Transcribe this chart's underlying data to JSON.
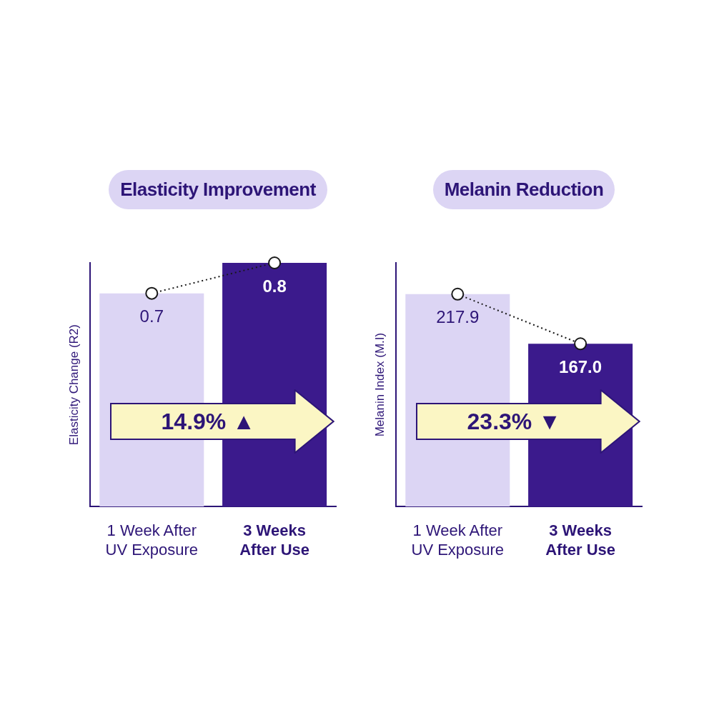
{
  "chart_data": [
    {
      "type": "bar",
      "title": "Elasticity Improvement",
      "ylabel": "Elasticity Change (R2)",
      "categories": [
        "1 Week After\nUV Exposure",
        "3 Weeks\nAfter Use"
      ],
      "series": [
        {
          "colors": [
            "#dcd5f4",
            "#3b1a8c"
          ],
          "values": [
            0.7,
            0.8
          ],
          "value_labels": [
            "0.7",
            "0.8"
          ]
        },
        {
          "type": "line",
          "color": "#1a1a1a",
          "values": [
            0.7,
            0.8
          ]
        }
      ],
      "marker": "circle",
      "line_style": "dotted",
      "annotations": [
        "14.9% ▲"
      ],
      "grid": false,
      "legend": false,
      "tick_labels": "x"
    },
    {
      "type": "bar",
      "title": "Melanin Reduction",
      "ylabel": "Melanin Index (M.I)",
      "categories": [
        "1 Week After\nUV Exposure",
        "3 Weeks\nAfter Use"
      ],
      "series": [
        {
          "colors": [
            "#dcd5f4",
            "#3b1a8c"
          ],
          "values": [
            217.9,
            167.0
          ],
          "value_labels": [
            "217.9",
            "167.0"
          ]
        },
        {
          "type": "line",
          "color": "#1a1a1a",
          "values": [
            217.9,
            167.0
          ]
        }
      ],
      "marker": "circle",
      "line_style": "dotted",
      "annotations": [
        "23.3% ▼"
      ],
      "grid": false,
      "legend": false,
      "tick_labels": "x"
    }
  ]
}
